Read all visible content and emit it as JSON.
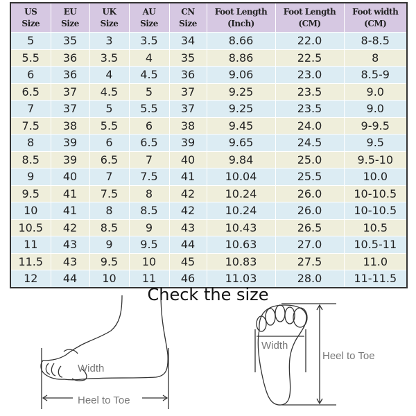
{
  "table": {
    "headers": [
      [
        "US",
        "Size"
      ],
      [
        "EU",
        "Size"
      ],
      [
        "UK",
        "Size"
      ],
      [
        "AU",
        "Size"
      ],
      [
        "CN",
        "Size"
      ],
      [
        "Foot Length",
        "(Inch)"
      ],
      [
        "Foot Length",
        "(CM)"
      ],
      [
        "Foot width",
        "(CM)"
      ]
    ],
    "rows": [
      [
        "5",
        "35",
        "3",
        "3.5",
        "34",
        "8.66",
        "22.0",
        "8-8.5"
      ],
      [
        "5.5",
        "36",
        "3.5",
        "4",
        "35",
        "8.86",
        "22.5",
        "8"
      ],
      [
        "6",
        "36",
        "4",
        "4.5",
        "36",
        "9.06",
        "23.0",
        "8.5-9"
      ],
      [
        "6.5",
        "37",
        "4.5",
        "5",
        "37",
        "9.25",
        "23.5",
        "9.0"
      ],
      [
        "7",
        "37",
        "5",
        "5.5",
        "37",
        "9.25",
        "23.5",
        "9.0"
      ],
      [
        "7.5",
        "38",
        "5.5",
        "6",
        "38",
        "9.45",
        "24.0",
        "9-9.5"
      ],
      [
        "8",
        "39",
        "6",
        "6.5",
        "39",
        "9.65",
        "24.5",
        "9.5"
      ],
      [
        "8.5",
        "39",
        "6.5",
        "7",
        "40",
        "9.84",
        "25.0",
        "9.5-10"
      ],
      [
        "9",
        "40",
        "7",
        "7.5",
        "41",
        "10.04",
        "25.5",
        "10.0"
      ],
      [
        "9.5",
        "41",
        "7.5",
        "8",
        "42",
        "10.24",
        "26.0",
        "10-10.5"
      ],
      [
        "10",
        "41",
        "8",
        "8.5",
        "42",
        "10.24",
        "26.0",
        "10-10.5"
      ],
      [
        "10.5",
        "42",
        "8.5",
        "9",
        "43",
        "10.43",
        "26.5",
        "10.5"
      ],
      [
        "11",
        "43",
        "9",
        "9.5",
        "44",
        "10.63",
        "27.0",
        "10.5-11"
      ],
      [
        "11.5",
        "43",
        "9.5",
        "10",
        "45",
        "10.83",
        "27.5",
        "11.0"
      ],
      [
        "12",
        "44",
        "10",
        "11",
        "46",
        "11.03",
        "28.0",
        "11-11.5"
      ]
    ]
  },
  "title": "Check the size",
  "side_diagram": {
    "width_label": "Width",
    "length_label": "Heel to Toe"
  },
  "sole_diagram": {
    "width_label": "Width",
    "length_label": "Heel to Toe"
  },
  "colors": {
    "header": "#d6c8e2",
    "row_blue": "#dcecf3",
    "row_cream": "#efeedb"
  }
}
